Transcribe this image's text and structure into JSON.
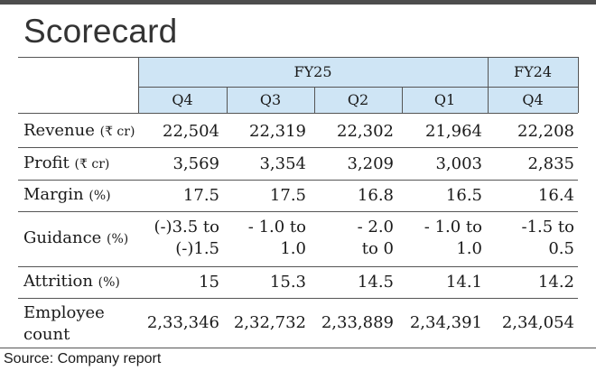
{
  "title": "Scorecard",
  "header": {
    "groups": [
      "FY25",
      "FY24"
    ],
    "quarters": [
      "Q4",
      "Q3",
      "Q2",
      "Q1",
      "Q4"
    ]
  },
  "rows": [
    {
      "label": "Revenue",
      "unit": "(₹ cr)",
      "values": [
        "22,504",
        "22,319",
        "22,302",
        "21,964",
        "22,208"
      ]
    },
    {
      "label": "Profit",
      "unit": "(₹ cr)",
      "values": [
        "3,569",
        "3,354",
        "3,209",
        "3,003",
        "2,835"
      ]
    },
    {
      "label": "Margin",
      "unit": "(%)",
      "values": [
        "17.5",
        "17.5",
        "16.8",
        "16.5",
        "16.4"
      ]
    },
    {
      "label": "Guidance",
      "unit": "(%)",
      "values": [
        [
          "(-)3.5 to",
          "(-)1.5"
        ],
        [
          "- 1.0 to",
          "1.0"
        ],
        [
          "- 2.0",
          "to 0"
        ],
        [
          "- 1.0 to",
          "1.0"
        ],
        [
          "-1.5 to",
          "0.5"
        ]
      ]
    },
    {
      "label": "Attrition",
      "unit": "(%)",
      "values": [
        "15",
        "15.3",
        "14.5",
        "14.1",
        "14.2"
      ]
    },
    {
      "label": [
        "Employee",
        "count"
      ],
      "unit": "",
      "values": [
        "2,33,346",
        "2,32,732",
        "2,33,889",
        "2,34,391",
        "2,34,054"
      ]
    }
  ],
  "source": "Source: Company report",
  "colors": {
    "header_bg": "#cfe5f5",
    "rule": "#555555",
    "top_bar": "#4d4d4d"
  }
}
